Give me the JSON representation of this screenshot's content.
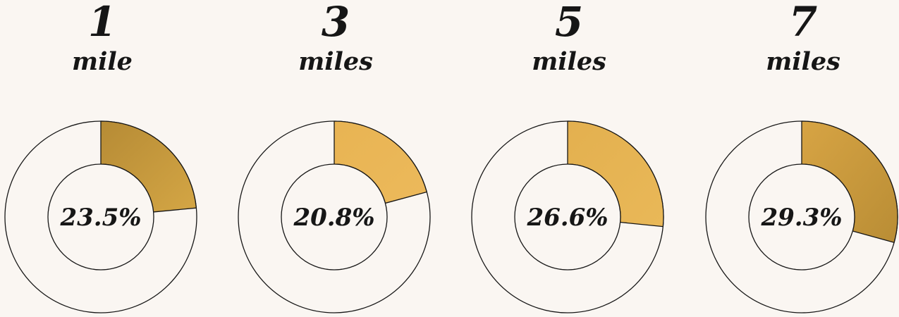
{
  "chart_data": {
    "type": "pie",
    "colors": {
      "background": "#faf6f2",
      "outline": "#161616",
      "text": "#161616",
      "base": "#faf6f2"
    },
    "charts": [
      {
        "number": "1",
        "unit": "mile",
        "value": 23.5,
        "label": "23.5%",
        "color_a": "#b68b35",
        "color_b": "#d4a645"
      },
      {
        "number": "3",
        "unit": "miles",
        "value": 20.8,
        "label": "20.8%",
        "color_a": "#e8b453",
        "color_b": "#ecb95b"
      },
      {
        "number": "5",
        "unit": "miles",
        "value": 26.6,
        "label": "26.6%",
        "color_a": "#e3b04f",
        "color_b": "#e9b858"
      },
      {
        "number": "7",
        "unit": "miles",
        "value": 29.3,
        "label": "29.3%",
        "color_a": "#d7a444",
        "color_b": "#b98d35"
      }
    ]
  }
}
